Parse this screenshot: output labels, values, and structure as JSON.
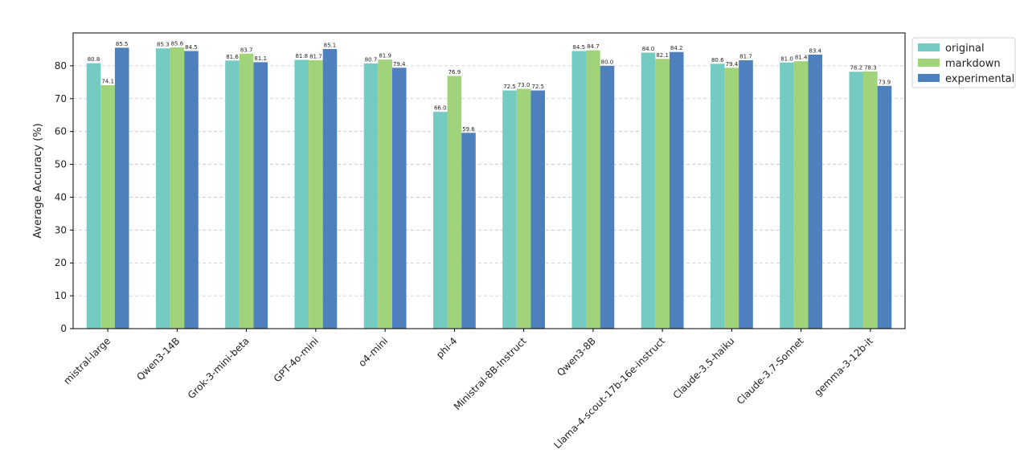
{
  "chart_data": {
    "type": "bar",
    "title": "",
    "xlabel": "",
    "ylabel": "Average Accuracy (%)",
    "ylim": [
      0,
      90
    ],
    "yticks": [
      0,
      10,
      20,
      30,
      40,
      50,
      60,
      70,
      80
    ],
    "grid": true,
    "legend_position": "outside-top-right",
    "categories": [
      "mistral-large",
      "Qwen3-14B",
      "Grok-3-mini-beta",
      "GPT-4o-mini",
      "o4-mini",
      "phi-4",
      "Ministral-8B-Instruct",
      "Qwen3-8B",
      "Llama-4-scout-17b-16e-instruct",
      "Claude-3.5-haiku",
      "Claude-3.7-Sonnet",
      "gemma-3-12b-it"
    ],
    "series": [
      {
        "name": "original",
        "color": "#74cbc2",
        "values": [
          80.8,
          85.3,
          81.6,
          81.8,
          80.7,
          66.0,
          72.5,
          84.5,
          84.0,
          80.6,
          81.0,
          78.2
        ]
      },
      {
        "name": "markdown",
        "color": "#a1d47a",
        "values": [
          74.1,
          85.6,
          83.7,
          81.7,
          81.9,
          76.9,
          73.0,
          84.7,
          82.1,
          79.4,
          81.4,
          78.3
        ]
      },
      {
        "name": "experimental",
        "color": "#4d80bd",
        "values": [
          85.5,
          84.5,
          81.1,
          85.1,
          79.4,
          59.6,
          72.5,
          80.0,
          84.2,
          81.7,
          83.4,
          73.9
        ]
      }
    ]
  }
}
